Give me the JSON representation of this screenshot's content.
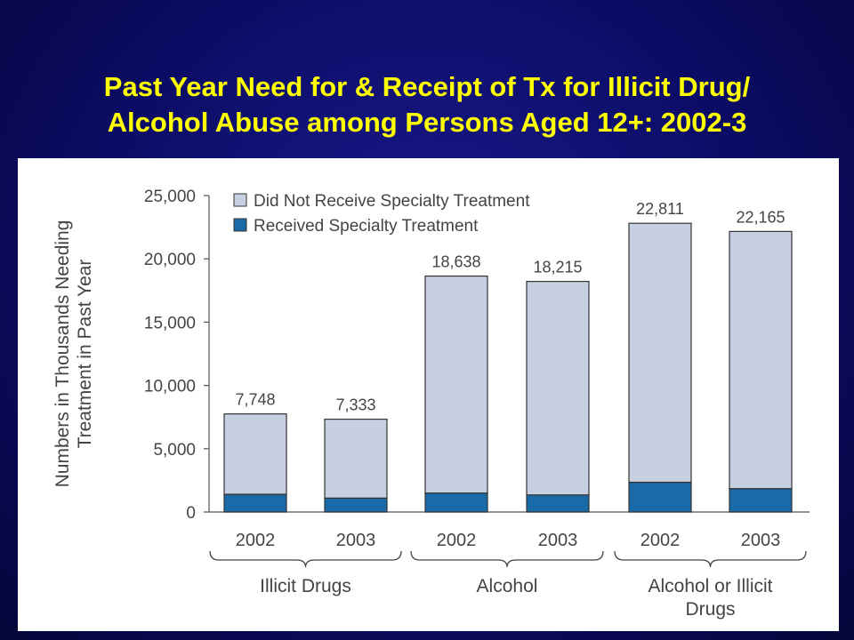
{
  "slide": {
    "title_line1": "Past Year Need for & Receipt of Tx for Illicit Drug/",
    "title_line2": "Alcohol Abuse among Persons Aged 12+: 2002-3"
  },
  "chart_data": {
    "type": "bar",
    "stacked": true,
    "title": "",
    "ylabel_line1": "Numbers in Thousands Needing",
    "ylabel_line2": "Treatment in Past Year",
    "ylim": [
      0,
      25000
    ],
    "yticks": [
      0,
      5000,
      10000,
      15000,
      20000,
      25000
    ],
    "ytick_labels": [
      "0",
      "5,000",
      "10,000",
      "15,000",
      "20,000",
      "25,000"
    ],
    "categories": [
      "2002",
      "2003",
      "2002",
      "2003",
      "2002",
      "2003"
    ],
    "groups": [
      {
        "label_lines": [
          "Illicit Drugs"
        ],
        "categories": [
          0,
          1
        ]
      },
      {
        "label_lines": [
          "Alcohol"
        ],
        "categories": [
          2,
          3
        ]
      },
      {
        "label_lines": [
          "Alcohol or Illicit",
          "Drugs"
        ],
        "categories": [
          4,
          5
        ]
      }
    ],
    "totals": [
      7748,
      7333,
      18638,
      18215,
      22811,
      22165
    ],
    "total_labels": [
      "7,748",
      "7,333",
      "18,638",
      "18,215",
      "22,811",
      "22,165"
    ],
    "series": [
      {
        "name": "Received Specialty Treatment",
        "color": "#1a6aa8",
        "values": [
          1400,
          1100,
          1500,
          1350,
          2350,
          1850
        ]
      },
      {
        "name": "Did Not Receive Specialty Treatment",
        "color": "#c7d0e0",
        "values": [
          6348,
          6233,
          17138,
          16865,
          20461,
          20315
        ]
      }
    ],
    "legend": {
      "position": "top",
      "entries": [
        "Did Not Receive Specialty Treatment",
        "Received Specialty Treatment"
      ]
    },
    "grid": false
  }
}
